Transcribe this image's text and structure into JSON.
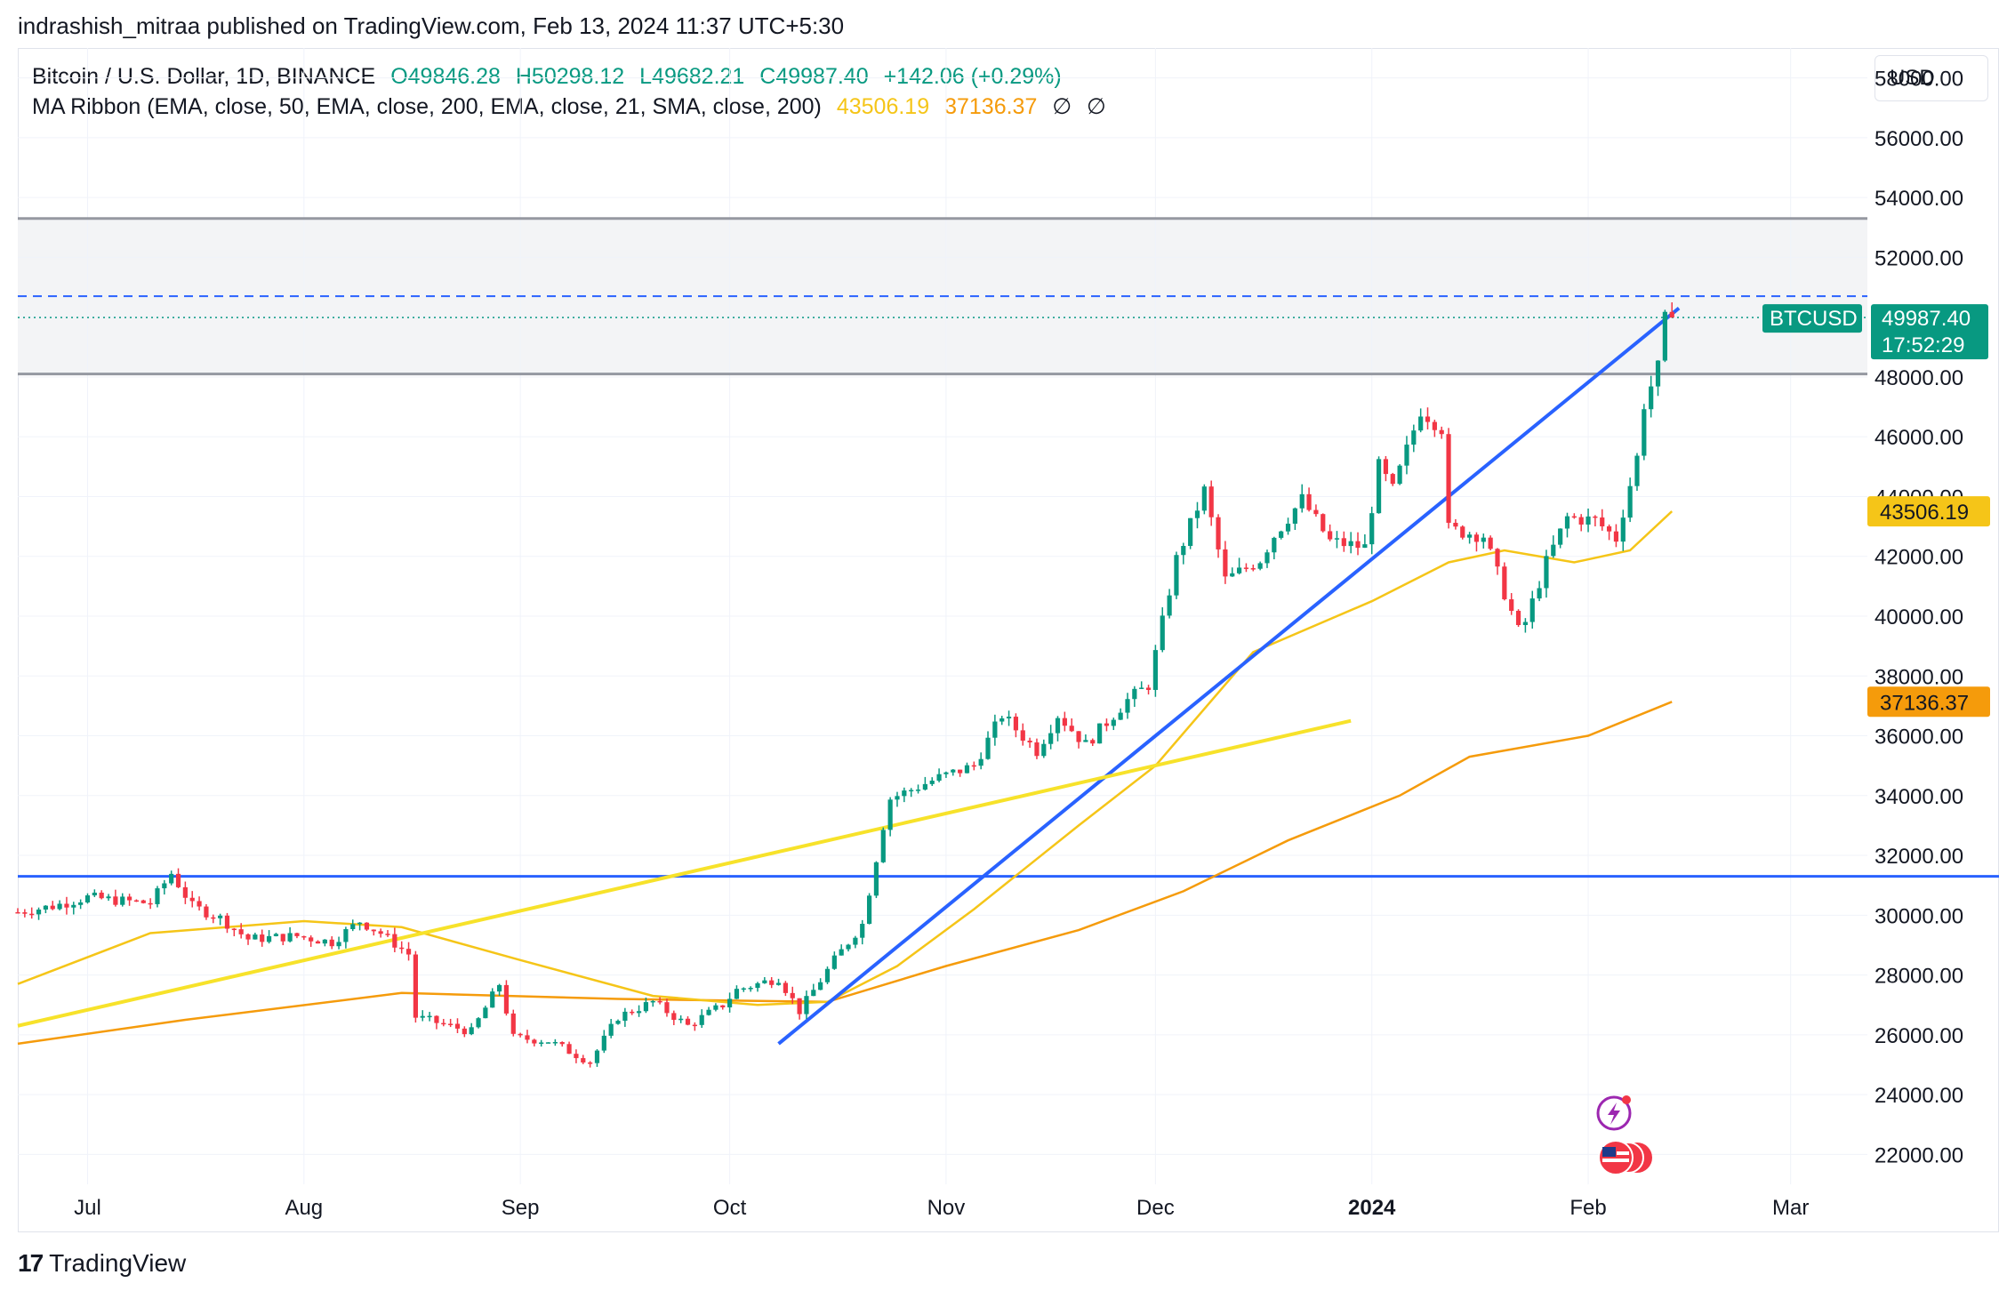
{
  "header": {
    "published": "indrashish_mitraa published on TradingView.com, Feb 13, 2024 11:37 UTC+5:30"
  },
  "legend": {
    "symbol": "Bitcoin / U.S. Dollar, 1D, BINANCE",
    "open": "O49846.28",
    "high": "H50298.12",
    "low": "L49682.21",
    "close": "C49987.40",
    "change": "+142.06 (+0.29%)",
    "ma_ribbon": "MA Ribbon (EMA, close, 50, EMA, close, 200, EMA, close, 21, SMA, close, 200)",
    "ma_value_1": "43506.19",
    "ma_value_2": "37136.37",
    "na_1": "∅",
    "na_2": "∅"
  },
  "currency_button": "USD",
  "footer": {
    "brand": "TradingView",
    "logo_text": "17"
  },
  "colors": {
    "up": "#089981",
    "down": "#f23645",
    "ema50": "#f5c518",
    "ema200": "#f59b0b",
    "trendline": "#2962ff",
    "yellow_trendline": "#f7e22a",
    "zone_fill": "#f3f4f6",
    "zone_border": "#9598a1"
  },
  "chart_data": {
    "type": "candlestick",
    "title": "Bitcoin / U.S. Dollar, 1D, BINANCE",
    "ylim": [
      21000,
      59000
    ],
    "y_ticks": [
      22000,
      24000,
      26000,
      28000,
      30000,
      32000,
      34000,
      36000,
      38000,
      40000,
      42000,
      44000,
      46000,
      48000,
      50000,
      52000,
      54000,
      56000,
      58000
    ],
    "y_tick_labels": [
      "22000.00",
      "24000.00",
      "26000.00",
      "28000.00",
      "30000.00",
      "32000.00",
      "34000.00",
      "36000.00",
      "38000.00",
      "40000.00",
      "42000.00",
      "44000.00",
      "46000.00",
      "48000.00",
      "50000.00",
      "52000.00",
      "54000.00",
      "56000.00",
      "58000.00"
    ],
    "x_start": "2023-06-21",
    "x_end": "2024-03-12",
    "x_ticks": [
      {
        "date": "2023-07-01",
        "label": "Jul",
        "bold": false
      },
      {
        "date": "2023-08-01",
        "label": "Aug",
        "bold": false
      },
      {
        "date": "2023-09-01",
        "label": "Sep",
        "bold": false
      },
      {
        "date": "2023-10-01",
        "label": "Oct",
        "bold": false
      },
      {
        "date": "2023-11-01",
        "label": "Nov",
        "bold": false
      },
      {
        "date": "2023-12-01",
        "label": "Dec",
        "bold": false
      },
      {
        "date": "2024-01-01",
        "label": "2024",
        "bold": true
      },
      {
        "date": "2024-02-01",
        "label": "Feb",
        "bold": false
      },
      {
        "date": "2024-03-01",
        "label": "Mar",
        "bold": false
      }
    ],
    "price_series": [
      {
        "date": "2023-06-21",
        "close": 30100
      },
      {
        "date": "2023-06-26",
        "close": 30300
      },
      {
        "date": "2023-07-01",
        "close": 30600
      },
      {
        "date": "2023-07-05",
        "close": 30500
      },
      {
        "date": "2023-07-10",
        "close": 30400
      },
      {
        "date": "2023-07-13",
        "close": 31400
      },
      {
        "date": "2023-07-16",
        "close": 30300
      },
      {
        "date": "2023-07-20",
        "close": 29900
      },
      {
        "date": "2023-07-24",
        "close": 29200
      },
      {
        "date": "2023-07-31",
        "close": 29300
      },
      {
        "date": "2023-08-05",
        "close": 29100
      },
      {
        "date": "2023-08-09",
        "close": 29800
      },
      {
        "date": "2023-08-12",
        "close": 29400
      },
      {
        "date": "2023-08-16",
        "close": 28700
      },
      {
        "date": "2023-08-17",
        "close": 26600
      },
      {
        "date": "2023-08-25",
        "close": 26100
      },
      {
        "date": "2023-08-29",
        "close": 27700
      },
      {
        "date": "2023-08-31",
        "close": 25900
      },
      {
        "date": "2023-09-05",
        "close": 25800
      },
      {
        "date": "2023-09-11",
        "close": 25100
      },
      {
        "date": "2023-09-15",
        "close": 26600
      },
      {
        "date": "2023-09-20",
        "close": 27100
      },
      {
        "date": "2023-09-25",
        "close": 26300
      },
      {
        "date": "2023-09-30",
        "close": 27000
      },
      {
        "date": "2023-10-02",
        "close": 27500
      },
      {
        "date": "2023-10-08",
        "close": 27900
      },
      {
        "date": "2023-10-11",
        "close": 26800
      },
      {
        "date": "2023-10-16",
        "close": 28500
      },
      {
        "date": "2023-10-20",
        "close": 29700
      },
      {
        "date": "2023-10-23",
        "close": 33000
      },
      {
        "date": "2023-10-24",
        "close": 33900
      },
      {
        "date": "2023-10-31",
        "close": 34600
      },
      {
        "date": "2023-11-05",
        "close": 35000
      },
      {
        "date": "2023-11-09",
        "close": 36700
      },
      {
        "date": "2023-11-14",
        "close": 35500
      },
      {
        "date": "2023-11-17",
        "close": 36700
      },
      {
        "date": "2023-11-21",
        "close": 35700
      },
      {
        "date": "2023-11-27",
        "close": 37200
      },
      {
        "date": "2023-11-30",
        "close": 37700
      },
      {
        "date": "2023-12-04",
        "close": 41900
      },
      {
        "date": "2023-12-08",
        "close": 44200
      },
      {
        "date": "2023-12-11",
        "close": 41200
      },
      {
        "date": "2023-12-16",
        "close": 41900
      },
      {
        "date": "2023-12-18",
        "close": 42700
      },
      {
        "date": "2023-12-22",
        "close": 43900
      },
      {
        "date": "2023-12-26",
        "close": 42500
      },
      {
        "date": "2023-12-31",
        "close": 42300
      },
      {
        "date": "2024-01-02",
        "close": 45000
      },
      {
        "date": "2024-01-04",
        "close": 44200
      },
      {
        "date": "2024-01-08",
        "close": 46900
      },
      {
        "date": "2024-01-11",
        "close": 46300
      },
      {
        "date": "2024-01-12",
        "close": 42900
      },
      {
        "date": "2024-01-17",
        "close": 42700
      },
      {
        "date": "2024-01-22",
        "close": 39500
      },
      {
        "date": "2024-01-23",
        "close": 39800
      },
      {
        "date": "2024-01-26",
        "close": 41800
      },
      {
        "date": "2024-01-29",
        "close": 43300
      },
      {
        "date": "2024-02-02",
        "close": 43200
      },
      {
        "date": "2024-02-05",
        "close": 42600
      },
      {
        "date": "2024-02-08",
        "close": 45300
      },
      {
        "date": "2024-02-09",
        "close": 47100
      },
      {
        "date": "2024-02-11",
        "close": 48300
      },
      {
        "date": "2024-02-12",
        "close": 49900
      },
      {
        "date": "2024-02-13",
        "close": 49987
      }
    ],
    "ema50_series": [
      {
        "date": "2023-06-21",
        "value": 27700
      },
      {
        "date": "2023-07-10",
        "value": 29400
      },
      {
        "date": "2023-08-01",
        "value": 29800
      },
      {
        "date": "2023-08-15",
        "value": 29600
      },
      {
        "date": "2023-09-01",
        "value": 28500
      },
      {
        "date": "2023-09-20",
        "value": 27300
      },
      {
        "date": "2023-10-05",
        "value": 27000
      },
      {
        "date": "2023-10-15",
        "value": 27100
      },
      {
        "date": "2023-10-25",
        "value": 28300
      },
      {
        "date": "2023-11-05",
        "value": 30200
      },
      {
        "date": "2023-11-20",
        "value": 33000
      },
      {
        "date": "2023-12-01",
        "value": 35000
      },
      {
        "date": "2023-12-15",
        "value": 38800
      },
      {
        "date": "2024-01-01",
        "value": 40500
      },
      {
        "date": "2024-01-12",
        "value": 41800
      },
      {
        "date": "2024-01-20",
        "value": 42200
      },
      {
        "date": "2024-01-30",
        "value": 41800
      },
      {
        "date": "2024-02-07",
        "value": 42200
      },
      {
        "date": "2024-02-13",
        "value": 43506.19
      }
    ],
    "ema200_series": [
      {
        "date": "2023-06-21",
        "value": 25700
      },
      {
        "date": "2023-07-15",
        "value": 26500
      },
      {
        "date": "2023-08-15",
        "value": 27400
      },
      {
        "date": "2023-09-15",
        "value": 27200
      },
      {
        "date": "2023-10-15",
        "value": 27100
      },
      {
        "date": "2023-11-01",
        "value": 28300
      },
      {
        "date": "2023-11-20",
        "value": 29500
      },
      {
        "date": "2023-12-05",
        "value": 30800
      },
      {
        "date": "2023-12-20",
        "value": 32500
      },
      {
        "date": "2024-01-05",
        "value": 34000
      },
      {
        "date": "2024-01-15",
        "value": 35300
      },
      {
        "date": "2024-02-01",
        "value": 36000
      },
      {
        "date": "2024-02-13",
        "value": 37136.37
      }
    ],
    "levels": [
      {
        "name": "resistance-zone-top",
        "value": 53300
      },
      {
        "name": "resistance-zone-bottom",
        "value": 48100
      },
      {
        "name": "blue-dashed-level",
        "value": 50700
      },
      {
        "name": "blue-horizontal-support",
        "value": 31300
      }
    ],
    "trendlines": [
      {
        "name": "blue-rising-trendline",
        "from": {
          "date": "2023-10-08",
          "value": 25700
        },
        "to": {
          "date": "2024-02-14",
          "value": 50300
        }
      },
      {
        "name": "yellow-rising-trendline",
        "from": {
          "date": "2023-06-21",
          "value": 26300
        },
        "to": {
          "date": "2023-12-29",
          "value": 36500
        }
      }
    ],
    "price_labels": [
      {
        "name": "btcusd",
        "label": "BTCUSD",
        "value_text": "49987.40",
        "countdown": "17:52:29",
        "value": 49987.4,
        "color": "#089981"
      },
      {
        "name": "ema50",
        "value_text": "43506.19",
        "value": 43506.19,
        "color": "#f5c518"
      },
      {
        "name": "ema200",
        "value_text": "37136.37",
        "value": 37136.37,
        "color": "#f59b0b"
      }
    ]
  }
}
